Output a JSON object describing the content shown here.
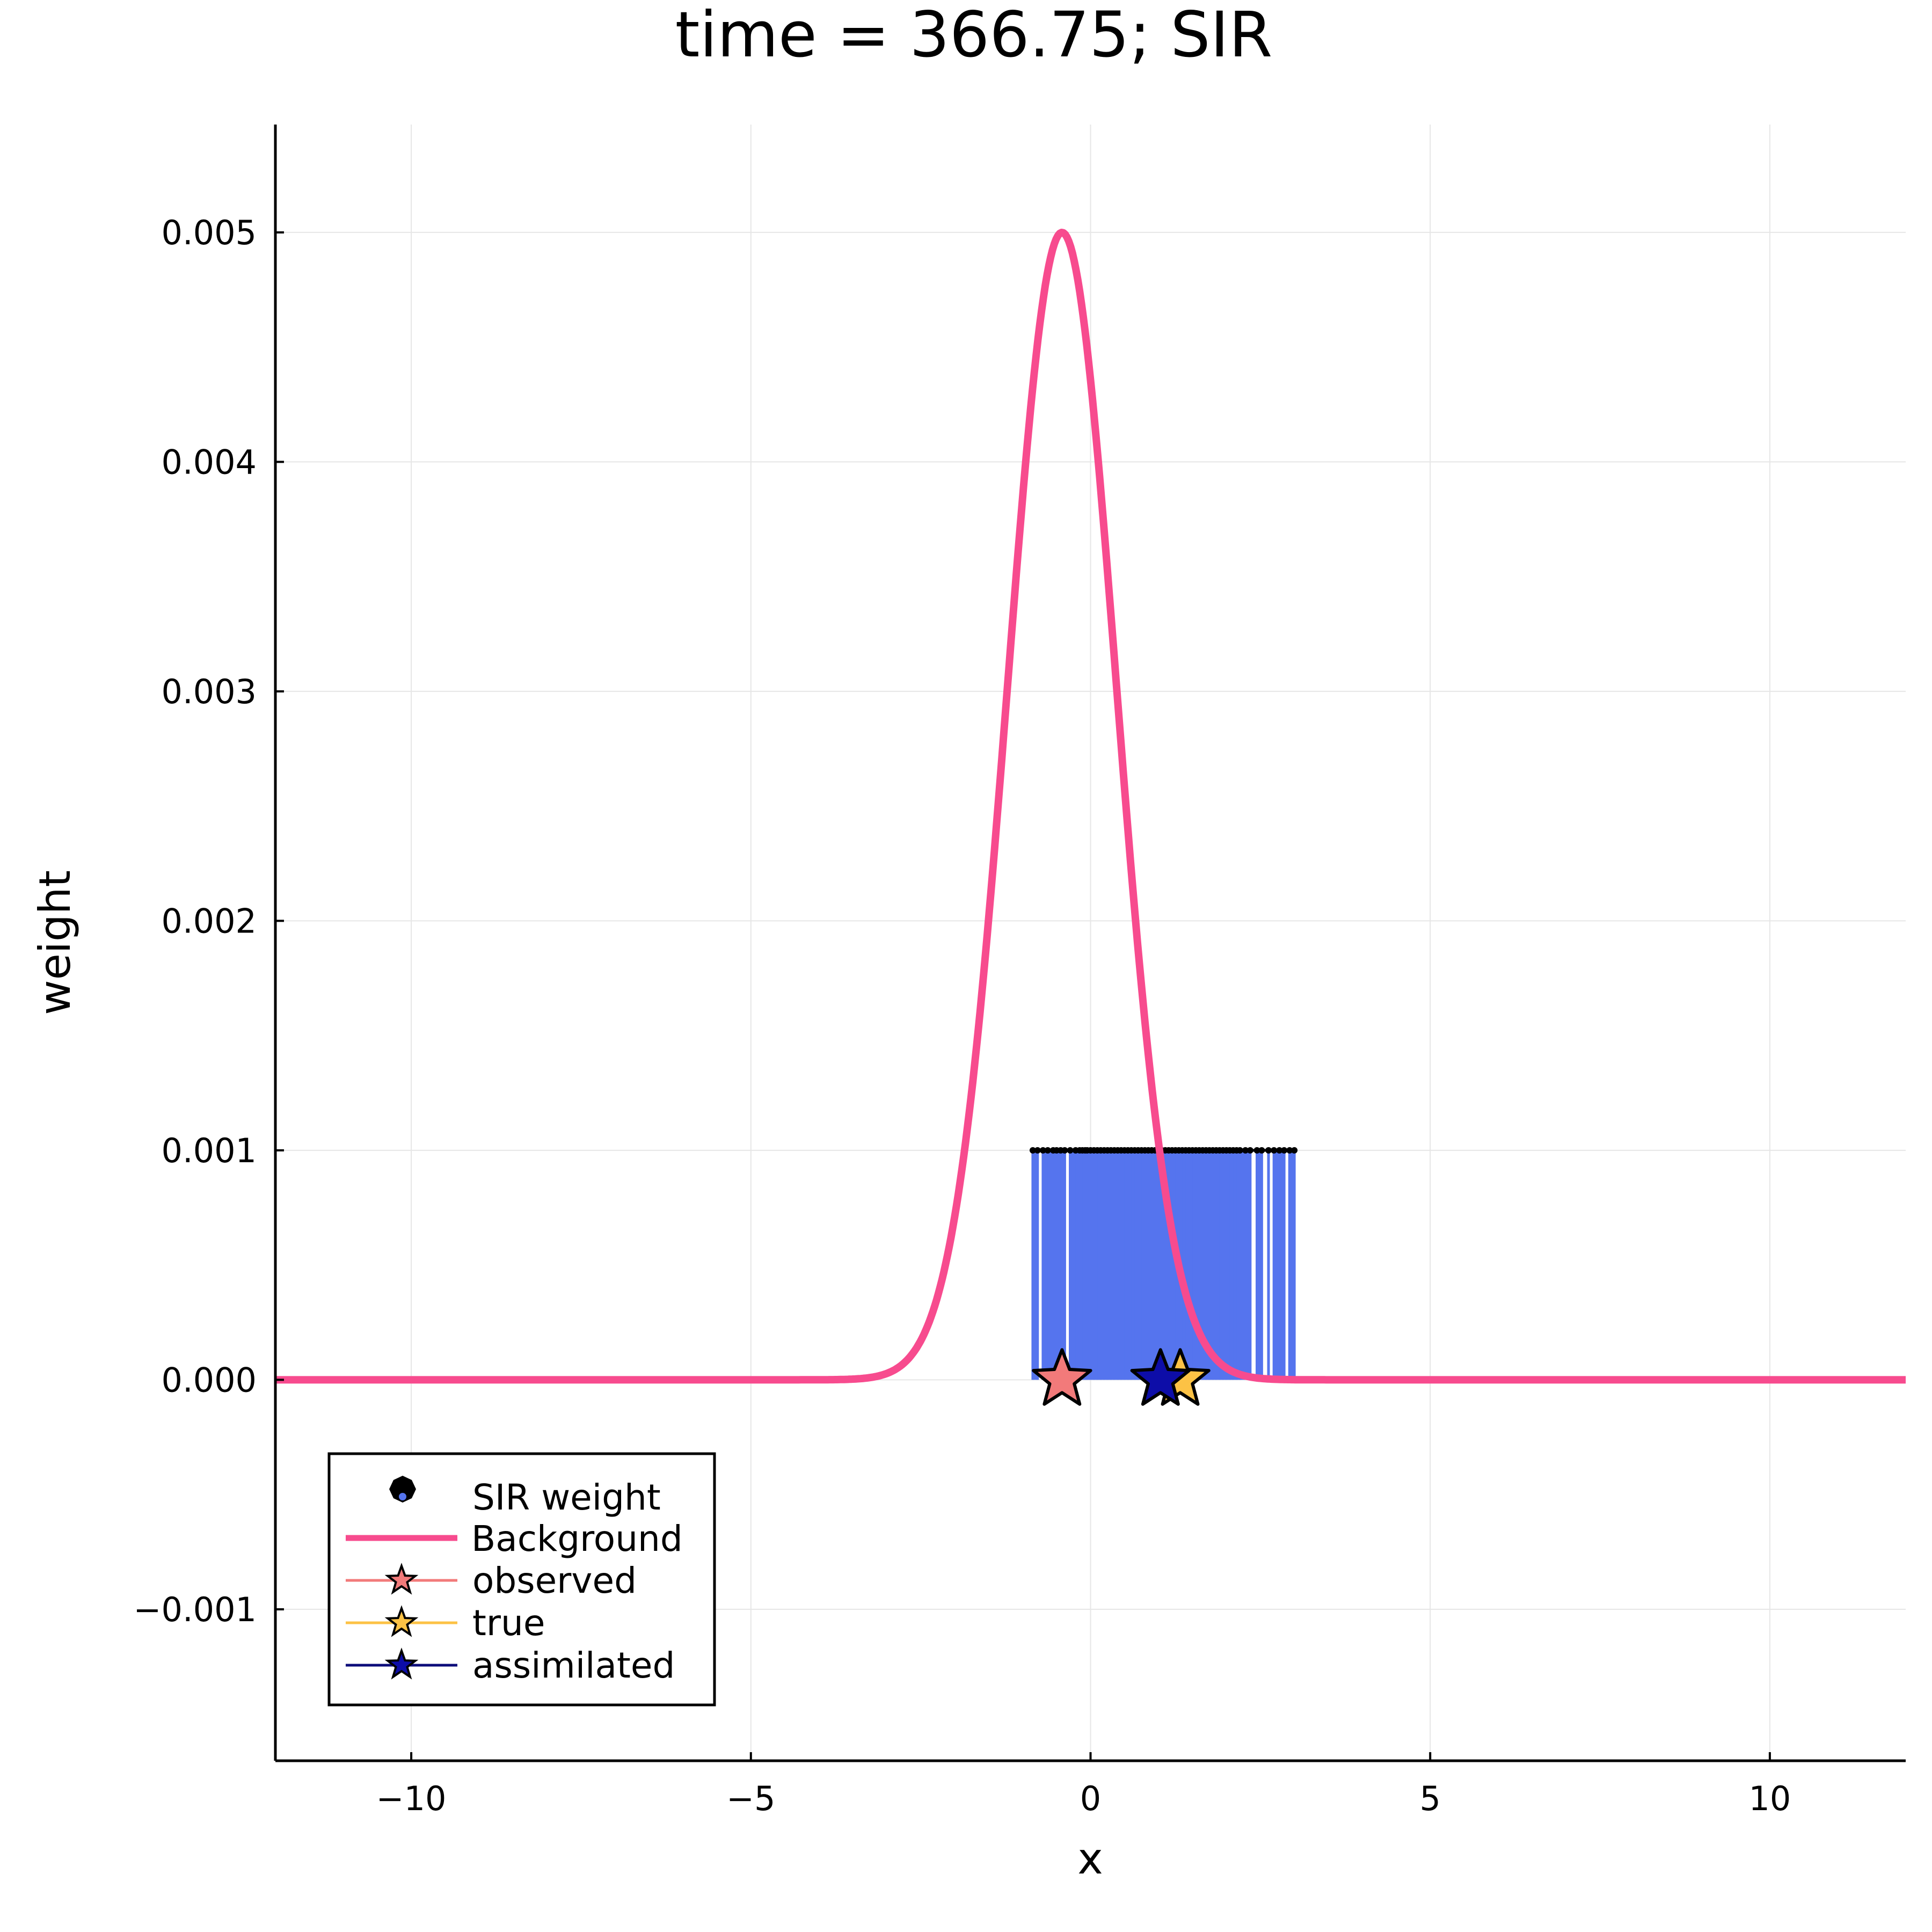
{
  "chart_data": {
    "type": "scatter",
    "title": "time = 366.75; SIR",
    "xlabel": "x",
    "ylabel": "weight",
    "xlim": [
      -12,
      12
    ],
    "ylim": [
      -0.00166,
      0.00547
    ],
    "grid": true,
    "legend_position": "bottom-left",
    "x_ticks": [
      -10,
      -5,
      0,
      5,
      10
    ],
    "x_tick_labels": [
      "−10",
      "−5",
      "0",
      "5",
      "10"
    ],
    "y_ticks": [
      -0.001,
      0.0,
      0.001,
      0.002,
      0.003,
      0.004,
      0.005
    ],
    "y_tick_labels": [
      "−0.001",
      "0.000",
      "0.001",
      "0.002",
      "0.003",
      "0.004",
      "0.005"
    ],
    "series": [
      {
        "name": "SIR weight",
        "kind": "stem",
        "color": "#5574ee",
        "marker_color": "#000000",
        "weight": 0.001,
        "x": [
          -0.85,
          -0.78,
          -0.7,
          -0.63,
          -0.55,
          -0.5,
          -0.44,
          -0.38,
          -0.3,
          -0.22,
          -0.16,
          -0.12,
          -0.08,
          -0.05,
          0.0,
          0.05,
          0.1,
          0.15,
          0.2,
          0.25,
          0.3,
          0.35,
          0.4,
          0.45,
          0.5,
          0.55,
          0.6,
          0.65,
          0.7,
          0.75,
          0.8,
          0.85,
          0.9,
          0.95,
          1.0,
          1.05,
          1.1,
          1.15,
          1.2,
          1.25,
          1.3,
          1.35,
          1.4,
          1.45,
          1.5,
          1.55,
          1.6,
          1.65,
          1.7,
          1.75,
          1.8,
          1.85,
          1.9,
          1.95,
          2.0,
          2.05,
          2.1,
          2.15,
          2.2,
          2.28,
          2.35,
          2.45,
          2.52,
          2.62,
          2.7,
          2.78,
          2.85,
          2.93,
          3.0
        ]
      },
      {
        "name": "Background",
        "kind": "gaussian",
        "color": "#f74b8e",
        "mean": -0.42,
        "sd": 0.8,
        "peak": 0.005
      },
      {
        "name": "observed",
        "kind": "star",
        "color": "#f27a7a",
        "line_color": "#f27a7a",
        "x": -0.42,
        "y": 0.0
      },
      {
        "name": "true",
        "kind": "star",
        "color": "#fcc245",
        "line_color": "#fcc245",
        "x": 1.32,
        "y": 0.0
      },
      {
        "name": "assimilated",
        "kind": "star",
        "color": "#0d0da8",
        "line_color": "#0d0d7a",
        "x": 1.03,
        "y": 0.0
      }
    ]
  }
}
